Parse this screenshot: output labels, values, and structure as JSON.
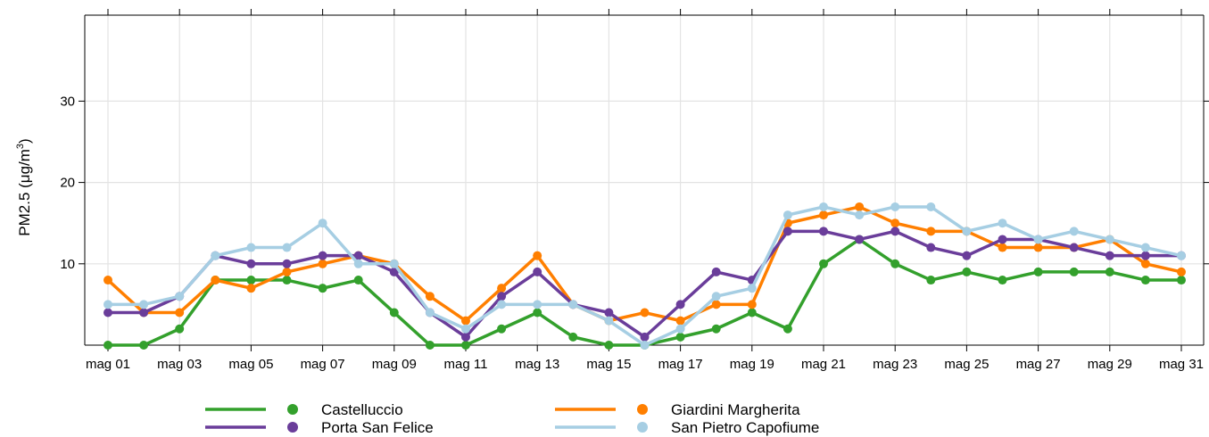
{
  "chart_data": {
    "type": "line",
    "title": "",
    "xlabel": "",
    "ylabel": {
      "prefix": "PM2.5 (μg/m",
      "superscript": "3",
      "suffix": ")"
    },
    "ylim": [
      0,
      39
    ],
    "xlim": [
      1,
      31
    ],
    "yticks": [
      10,
      20,
      30
    ],
    "xtick_days": [
      1,
      3,
      5,
      7,
      9,
      11,
      13,
      15,
      17,
      19,
      21,
      23,
      25,
      27,
      29,
      31
    ],
    "xtick_labels": [
      "mag 01",
      "mag 03",
      "mag 05",
      "mag 07",
      "mag 09",
      "mag 11",
      "mag 13",
      "mag 15",
      "mag 17",
      "mag 19",
      "mag 21",
      "mag 23",
      "mag 25",
      "mag 27",
      "mag 29",
      "mag 31"
    ],
    "grid": true,
    "legend_position": "bottom",
    "x": [
      1,
      2,
      3,
      4,
      5,
      6,
      7,
      8,
      9,
      10,
      11,
      12,
      13,
      14,
      15,
      16,
      17,
      18,
      19,
      20,
      21,
      22,
      23,
      24,
      25,
      26,
      27,
      28,
      29,
      30,
      31
    ],
    "series": [
      {
        "name": "Castelluccio",
        "color": "#33a02c",
        "values": [
          0,
          0,
          2,
          8,
          8,
          8,
          7,
          8,
          4,
          0,
          0,
          2,
          4,
          1,
          0,
          0,
          1,
          2,
          4,
          2,
          10,
          13,
          10,
          8,
          9,
          8,
          9,
          9,
          9,
          8,
          8
        ]
      },
      {
        "name": "Giardini Margherita",
        "color": "#ff7f00",
        "values": [
          8,
          4,
          4,
          8,
          7,
          9,
          10,
          11,
          10,
          6,
          3,
          7,
          11,
          5,
          3,
          4,
          3,
          5,
          5,
          15,
          16,
          17,
          15,
          14,
          14,
          12,
          12,
          12,
          13,
          10,
          9
        ]
      },
      {
        "name": "Porta San Felice",
        "color": "#6a3d9a",
        "values": [
          4,
          4,
          6,
          11,
          10,
          10,
          11,
          11,
          9,
          4,
          1,
          6,
          9,
          5,
          4,
          1,
          5,
          9,
          8,
          14,
          14,
          13,
          14,
          12,
          11,
          13,
          13,
          12,
          11,
          11,
          11
        ]
      },
      {
        "name": "San Pietro Capofiume",
        "color": "#a6cee3",
        "values": [
          5,
          5,
          6,
          11,
          12,
          12,
          15,
          10,
          10,
          4,
          2,
          5,
          5,
          5,
          3,
          0,
          2,
          6,
          7,
          16,
          17,
          16,
          17,
          17,
          14,
          15,
          13,
          14,
          13,
          12,
          11
        ]
      }
    ],
    "legend_order": [
      0,
      2,
      1,
      3
    ]
  }
}
